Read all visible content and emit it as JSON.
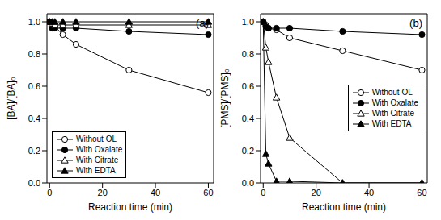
{
  "chart_data": [
    {
      "type": "line",
      "annotation": "(a)",
      "x_label": "Reaction time (min)",
      "y_label": "[BA]/[BA]₀",
      "x": [
        0,
        1,
        2,
        5,
        10,
        30,
        60
      ],
      "xlim": [
        -1,
        62
      ],
      "xticks": [
        0,
        20,
        40,
        60
      ],
      "ylim": [
        0,
        1.05
      ],
      "yticks": [
        {
          "value": 0,
          "label": "0.0"
        },
        0.2,
        0.4,
        0.6,
        0.8,
        {
          "value": 1,
          "label": "1.0"
        }
      ],
      "grid": false,
      "legend": "lower left",
      "series": [
        {
          "name": "Without OL",
          "color": "#000000",
          "marker": "open_circle",
          "values": [
            1.0,
            0.99,
            0.97,
            0.92,
            0.86,
            0.7,
            0.56
          ]
        },
        {
          "name": "With Oxalate",
          "color": "#000000",
          "marker": "filled_circle",
          "values": [
            1.0,
            0.96,
            0.96,
            0.96,
            0.96,
            0.94,
            0.92
          ]
        },
        {
          "name": "With Citrate",
          "color": "#000000",
          "marker": "open_triangle",
          "values": [
            1.0,
            0.99,
            0.98,
            0.98,
            0.98,
            0.98,
            0.98
          ]
        },
        {
          "name": "With EDTA",
          "color": "#000000",
          "marker": "filled_triangle",
          "values": [
            1.0,
            1.0,
            1.0,
            1.0,
            1.0,
            1.0,
            1.0
          ]
        }
      ]
    },
    {
      "type": "line",
      "annotation": "(b)",
      "x_label": "Reaction time (min)",
      "y_label": "[PMS]/[PMS]₀",
      "x": [
        0,
        1,
        2,
        5,
        10,
        30,
        60
      ],
      "xlim": [
        -1,
        62
      ],
      "xticks": [
        0,
        20,
        40,
        60
      ],
      "ylim": [
        0,
        1.05
      ],
      "yticks": [
        {
          "value": 0,
          "label": "0.0"
        },
        0.2,
        0.4,
        0.6,
        0.8,
        {
          "value": 1,
          "label": "1.0"
        }
      ],
      "grid": false,
      "legend": "right",
      "series": [
        {
          "name": "Without OL",
          "color": "#000000",
          "marker": "open_circle",
          "values": [
            1.0,
            0.98,
            0.96,
            0.95,
            0.9,
            0.82,
            0.7
          ]
        },
        {
          "name": "With Oxalate",
          "color": "#000000",
          "marker": "filled_circle",
          "values": [
            1.0,
            0.97,
            0.96,
            0.96,
            0.96,
            0.94,
            0.92
          ]
        },
        {
          "name": "With Citrate",
          "color": "#000000",
          "marker": "open_triangle",
          "values": [
            1.0,
            0.84,
            0.75,
            0.53,
            0.28,
            0.0,
            0.0
          ]
        },
        {
          "name": "With EDTA",
          "color": "#000000",
          "marker": "filled_triangle",
          "values": [
            1.0,
            0.18,
            0.12,
            0.01,
            0.01,
            0.0,
            0.0
          ]
        }
      ]
    }
  ]
}
